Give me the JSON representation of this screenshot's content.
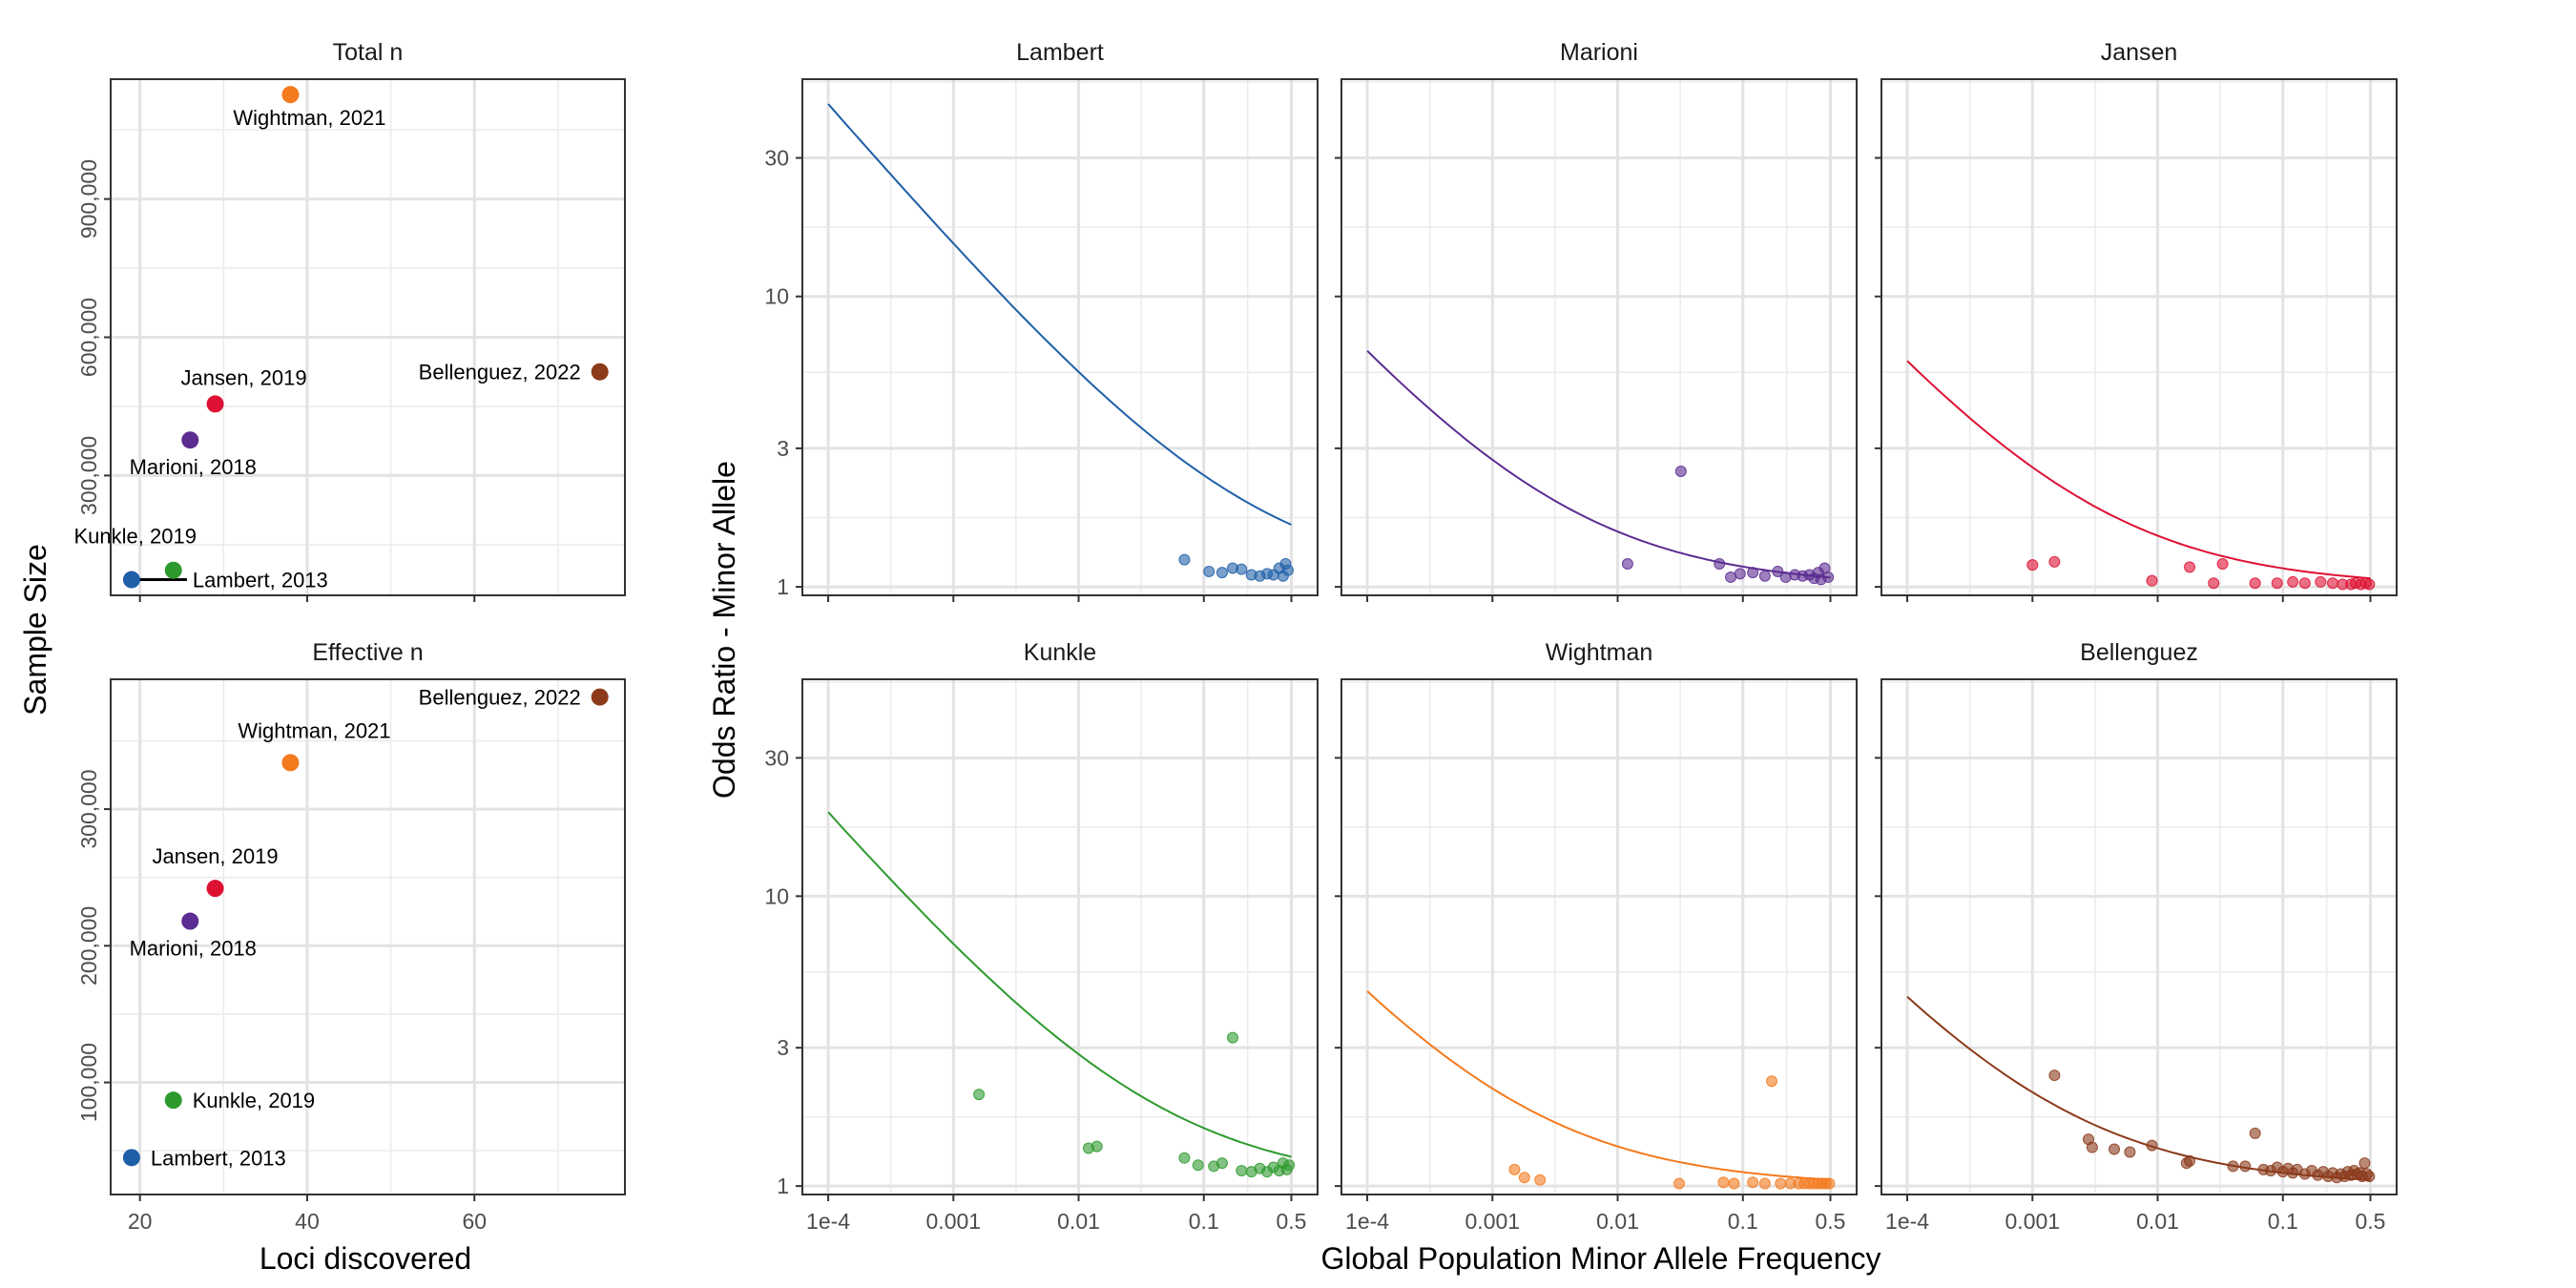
{
  "colors": {
    "Lambert": "#1F5FA8",
    "Kunkle": "#2E9A2E",
    "Marioni": "#5B2C91",
    "Jansen": "#DD1133",
    "Wightman": "#F47A1E",
    "Bellenguez": "#8B3A1A"
  },
  "chart_data": [
    {
      "type": "scatter",
      "panel": "left",
      "ylabel": "Sample Size",
      "xlabel": "Loci discovered",
      "xlim": [
        16.5,
        78
      ],
      "x_ticks": [
        "20",
        "40",
        "60"
      ],
      "x_tick_values": [
        20,
        40,
        60
      ],
      "grid": true,
      "facets": [
        {
          "title": "Total n",
          "ylim": [
            40000,
            1160000
          ],
          "y_ticks": [
            "300,000",
            "600,000",
            "900,000"
          ],
          "y_tick_values": [
            300000,
            600000,
            900000
          ],
          "points": [
            {
              "study": "Wightman",
              "label": "Wightman, 2021",
              "x": 38,
              "y": 1126563
            },
            {
              "study": "Bellenguez",
              "label": "Bellenguez, 2022",
              "x": 75,
              "y": 525000
            },
            {
              "study": "Jansen",
              "label": "Jansen, 2019",
              "x": 29,
              "y": 455258
            },
            {
              "study": "Marioni",
              "label": "Marioni, 2018",
              "x": 26,
              "y": 377000
            },
            {
              "study": "Kunkle",
              "label": "Kunkle, 2019",
              "x": 24,
              "y": 94437
            },
            {
              "study": "Lambert",
              "label": "Lambert, 2013",
              "x": 19,
              "y": 74046
            }
          ]
        },
        {
          "title": "Effective n",
          "ylim": [
            18000,
            395000
          ],
          "y_ticks": [
            "100,000",
            "200,000",
            "300,000"
          ],
          "y_tick_values": [
            100000,
            200000,
            300000
          ],
          "points": [
            {
              "study": "Bellenguez",
              "label": "Bellenguez, 2022",
              "x": 75,
              "y": 382000
            },
            {
              "study": "Wightman",
              "label": "Wightman, 2021",
              "x": 38,
              "y": 334000
            },
            {
              "study": "Jansen",
              "label": "Jansen, 2019",
              "x": 29,
              "y": 242000
            },
            {
              "study": "Marioni",
              "label": "Marioni, 2018",
              "x": 26,
              "y": 218000
            },
            {
              "study": "Kunkle",
              "label": "Kunkle, 2019",
              "x": 24,
              "y": 87000
            },
            {
              "study": "Lambert",
              "label": "Lambert, 2013",
              "x": 19,
              "y": 45000
            }
          ]
        }
      ]
    },
    {
      "type": "scatter",
      "panel": "right",
      "xlabel": "Global Population Minor Allele Frequency",
      "ylabel": "Odds Ratio - Minor Allele",
      "x_scale": "log",
      "y_scale": "log",
      "xlim": [
        6.22e-05,
        0.81
      ],
      "ylim": [
        0.935,
        56
      ],
      "x_ticks": [
        "1e-4",
        "0.001",
        "0.01",
        "0.1",
        "0.5"
      ],
      "x_tick_values": [
        0.0001,
        0.001,
        0.01,
        0.1,
        0.5
      ],
      "y_ticks": [
        "1",
        "3",
        "10",
        "30"
      ],
      "y_tick_values": [
        1,
        3,
        10,
        30
      ],
      "grid": true,
      "facets": [
        {
          "title": "Lambert",
          "study": "Lambert",
          "curve_or_at_1e4": 46,
          "points": [
            [
              0.07,
              1.24
            ],
            [
              0.11,
              1.13
            ],
            [
              0.14,
              1.12
            ],
            [
              0.17,
              1.16
            ],
            [
              0.2,
              1.15
            ],
            [
              0.24,
              1.1
            ],
            [
              0.28,
              1.09
            ],
            [
              0.32,
              1.11
            ],
            [
              0.36,
              1.1
            ],
            [
              0.4,
              1.16
            ],
            [
              0.43,
              1.09
            ],
            [
              0.45,
              1.2
            ],
            [
              0.47,
              1.14
            ]
          ]
        },
        {
          "title": "Marioni",
          "study": "Marioni",
          "curve_or_at_1e4": 6.5,
          "points": [
            [
              0.012,
              1.2
            ],
            [
              0.032,
              2.5
            ],
            [
              0.065,
              1.2
            ],
            [
              0.08,
              1.08
            ],
            [
              0.095,
              1.11
            ],
            [
              0.12,
              1.12
            ],
            [
              0.15,
              1.09
            ],
            [
              0.19,
              1.13
            ],
            [
              0.22,
              1.08
            ],
            [
              0.26,
              1.1
            ],
            [
              0.3,
              1.09
            ],
            [
              0.34,
              1.1
            ],
            [
              0.37,
              1.07
            ],
            [
              0.4,
              1.12
            ],
            [
              0.42,
              1.06
            ],
            [
              0.45,
              1.16
            ],
            [
              0.48,
              1.08
            ]
          ]
        },
        {
          "title": "Jansen",
          "study": "Jansen",
          "curve_or_at_1e4": 6.0,
          "points": [
            [
              0.001,
              1.19
            ],
            [
              0.0015,
              1.22
            ],
            [
              0.009,
              1.05
            ],
            [
              0.018,
              1.17
            ],
            [
              0.028,
              1.03
            ],
            [
              0.033,
              1.2
            ],
            [
              0.06,
              1.03
            ],
            [
              0.09,
              1.03
            ],
            [
              0.12,
              1.04
            ],
            [
              0.15,
              1.03
            ],
            [
              0.2,
              1.04
            ],
            [
              0.25,
              1.03
            ],
            [
              0.3,
              1.02
            ],
            [
              0.35,
              1.02
            ],
            [
              0.38,
              1.03
            ],
            [
              0.42,
              1.02
            ],
            [
              0.46,
              1.03
            ],
            [
              0.49,
              1.02
            ]
          ]
        },
        {
          "title": "Kunkle",
          "study": "Kunkle",
          "curve_or_at_1e4": 19.5,
          "points": [
            [
              0.0016,
              2.07
            ],
            [
              0.012,
              1.35
            ],
            [
              0.014,
              1.37
            ],
            [
              0.07,
              1.25
            ],
            [
              0.09,
              1.18
            ],
            [
              0.12,
              1.17
            ],
            [
              0.14,
              1.2
            ],
            [
              0.17,
              3.25
            ],
            [
              0.2,
              1.13
            ],
            [
              0.24,
              1.12
            ],
            [
              0.28,
              1.15
            ],
            [
              0.32,
              1.12
            ],
            [
              0.36,
              1.16
            ],
            [
              0.4,
              1.13
            ],
            [
              0.43,
              1.2
            ],
            [
              0.46,
              1.14
            ],
            [
              0.48,
              1.18
            ]
          ]
        },
        {
          "title": "Wightman",
          "study": "Wightman",
          "curve_or_at_1e4": 4.7,
          "points": [
            [
              0.0015,
              1.14
            ],
            [
              0.0018,
              1.07
            ],
            [
              0.0024,
              1.05
            ],
            [
              0.031,
              1.02
            ],
            [
              0.07,
              1.03
            ],
            [
              0.085,
              1.02
            ],
            [
              0.12,
              1.03
            ],
            [
              0.15,
              1.02
            ],
            [
              0.17,
              2.3
            ],
            [
              0.2,
              1.02
            ],
            [
              0.24,
              1.02
            ],
            [
              0.28,
              1.02
            ],
            [
              0.31,
              1.02
            ],
            [
              0.34,
              1.02
            ],
            [
              0.37,
              1.02
            ],
            [
              0.4,
              1.02
            ],
            [
              0.43,
              1.02
            ],
            [
              0.46,
              1.02
            ],
            [
              0.49,
              1.02
            ]
          ]
        },
        {
          "title": "Bellenguez",
          "study": "Bellenguez",
          "curve_or_at_1e4": 4.5,
          "points": [
            [
              0.0015,
              2.41
            ],
            [
              0.0028,
              1.45
            ],
            [
              0.003,
              1.36
            ],
            [
              0.0045,
              1.34
            ],
            [
              0.006,
              1.31
            ],
            [
              0.009,
              1.38
            ],
            [
              0.017,
              1.2
            ],
            [
              0.018,
              1.22
            ],
            [
              0.04,
              1.17
            ],
            [
              0.05,
              1.17
            ],
            [
              0.06,
              1.52
            ],
            [
              0.07,
              1.14
            ],
            [
              0.08,
              1.13
            ],
            [
              0.09,
              1.16
            ],
            [
              0.1,
              1.12
            ],
            [
              0.11,
              1.15
            ],
            [
              0.12,
              1.11
            ],
            [
              0.13,
              1.14
            ],
            [
              0.15,
              1.1
            ],
            [
              0.17,
              1.13
            ],
            [
              0.19,
              1.09
            ],
            [
              0.21,
              1.12
            ],
            [
              0.23,
              1.08
            ],
            [
              0.25,
              1.11
            ],
            [
              0.27,
              1.07
            ],
            [
              0.29,
              1.1
            ],
            [
              0.31,
              1.08
            ],
            [
              0.33,
              1.12
            ],
            [
              0.35,
              1.09
            ],
            [
              0.37,
              1.13
            ],
            [
              0.39,
              1.1
            ],
            [
              0.41,
              1.11
            ],
            [
              0.43,
              1.08
            ],
            [
              0.45,
              1.2
            ],
            [
              0.47,
              1.1
            ],
            [
              0.49,
              1.08
            ]
          ]
        }
      ]
    }
  ]
}
